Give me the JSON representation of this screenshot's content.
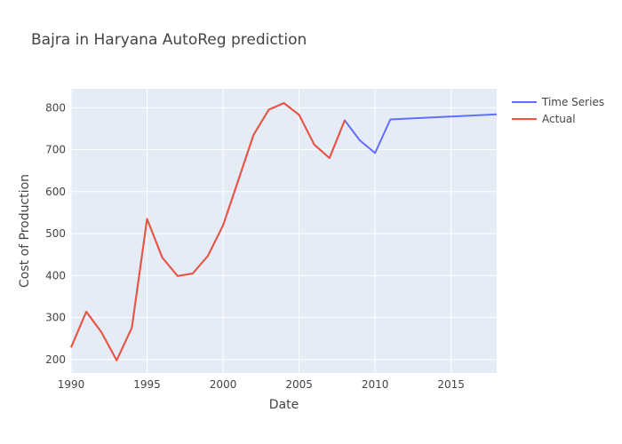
{
  "chart_data": {
    "type": "line",
    "title": "Bajra in Haryana AutoReg prediction",
    "xlabel": "Date",
    "ylabel": "Cost of Production",
    "xlim": [
      1990,
      2018
    ],
    "ylim": [
      168,
      845
    ],
    "x_ticks": [
      1990,
      1995,
      2000,
      2005,
      2010,
      2015
    ],
    "y_ticks": [
      200,
      300,
      400,
      500,
      600,
      700,
      800
    ],
    "grid": true,
    "legend_position": "top-right",
    "series": [
      {
        "name": "Time Series",
        "color": "#636efa",
        "x": [
          1990,
          1991,
          1992,
          1993,
          1994,
          1995,
          1996,
          1997,
          1998,
          1999,
          2000,
          2001,
          2002,
          2003,
          2004,
          2005,
          2006,
          2007,
          2008,
          2009,
          2010,
          2011,
          2018
        ],
        "y": [
          229,
          314,
          265,
          198,
          276,
          535,
          443,
          399,
          405,
          447,
          520,
          627,
          735,
          795,
          811,
          783,
          712,
          680,
          770,
          722,
          692,
          772,
          784
        ]
      },
      {
        "name": "Actual",
        "color": "#ef553b",
        "x": [
          1990,
          1991,
          1992,
          1993,
          1994,
          1995,
          1996,
          1997,
          1998,
          1999,
          2000,
          2001,
          2002,
          2003,
          2004,
          2005,
          2006,
          2007,
          2008
        ],
        "y": [
          229,
          314,
          265,
          198,
          276,
          535,
          443,
          399,
          405,
          447,
          520,
          627,
          735,
          795,
          811,
          783,
          712,
          680,
          770
        ]
      }
    ]
  }
}
